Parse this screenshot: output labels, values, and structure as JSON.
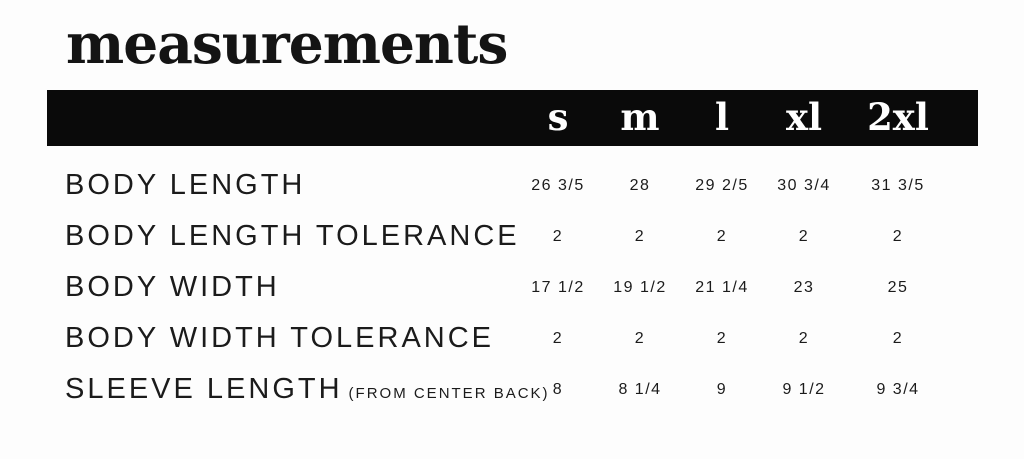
{
  "page": {
    "title": "measurements"
  },
  "colors": {
    "background": "#fdfdfd",
    "header_bg": "#0a0a0a",
    "header_text": "#ffffff",
    "text": "#1b1b1b"
  },
  "table": {
    "columns": [
      "s",
      "m",
      "l",
      "xl",
      "2xl"
    ],
    "rows": [
      {
        "label": "BODY LENGTH",
        "note": "",
        "values": [
          "26 3/5",
          "28",
          "29 2/5",
          "30 3/4",
          "31 3/5"
        ]
      },
      {
        "label": "BODY LENGTH TOLERANCE",
        "note": "",
        "values": [
          "2",
          "2",
          "2",
          "2",
          "2"
        ]
      },
      {
        "label": "BODY WIDTH",
        "note": "",
        "values": [
          "17 1/2",
          "19 1/2",
          "21 1/4",
          "23",
          "25"
        ]
      },
      {
        "label": "BODY WIDTH TOLERANCE",
        "note": "",
        "values": [
          "2",
          "2",
          "2",
          "2",
          "2"
        ]
      },
      {
        "label": "SLEEVE LENGTH",
        "note": "(FROM CENTER BACK)",
        "values": [
          "8",
          "8 1/4",
          "9",
          "9 1/2",
          "9 3/4"
        ]
      }
    ]
  },
  "chart_data": {
    "type": "table",
    "title": "measurements",
    "columns": [
      "",
      "s",
      "m",
      "l",
      "xl",
      "2xl"
    ],
    "rows": [
      [
        "BODY LENGTH",
        "26 3/5",
        "28",
        "29 2/5",
        "30 3/4",
        "31 3/5"
      ],
      [
        "BODY LENGTH TOLERANCE",
        "2",
        "2",
        "2",
        "2",
        "2"
      ],
      [
        "BODY WIDTH",
        "17 1/2",
        "19 1/2",
        "21 1/4",
        "23",
        "25"
      ],
      [
        "BODY WIDTH TOLERANCE",
        "2",
        "2",
        "2",
        "2",
        "2"
      ],
      [
        "SLEEVE LENGTH (FROM CENTER BACK)",
        "8",
        "8 1/4",
        "9",
        "9 1/2",
        "9 3/4"
      ]
    ]
  }
}
